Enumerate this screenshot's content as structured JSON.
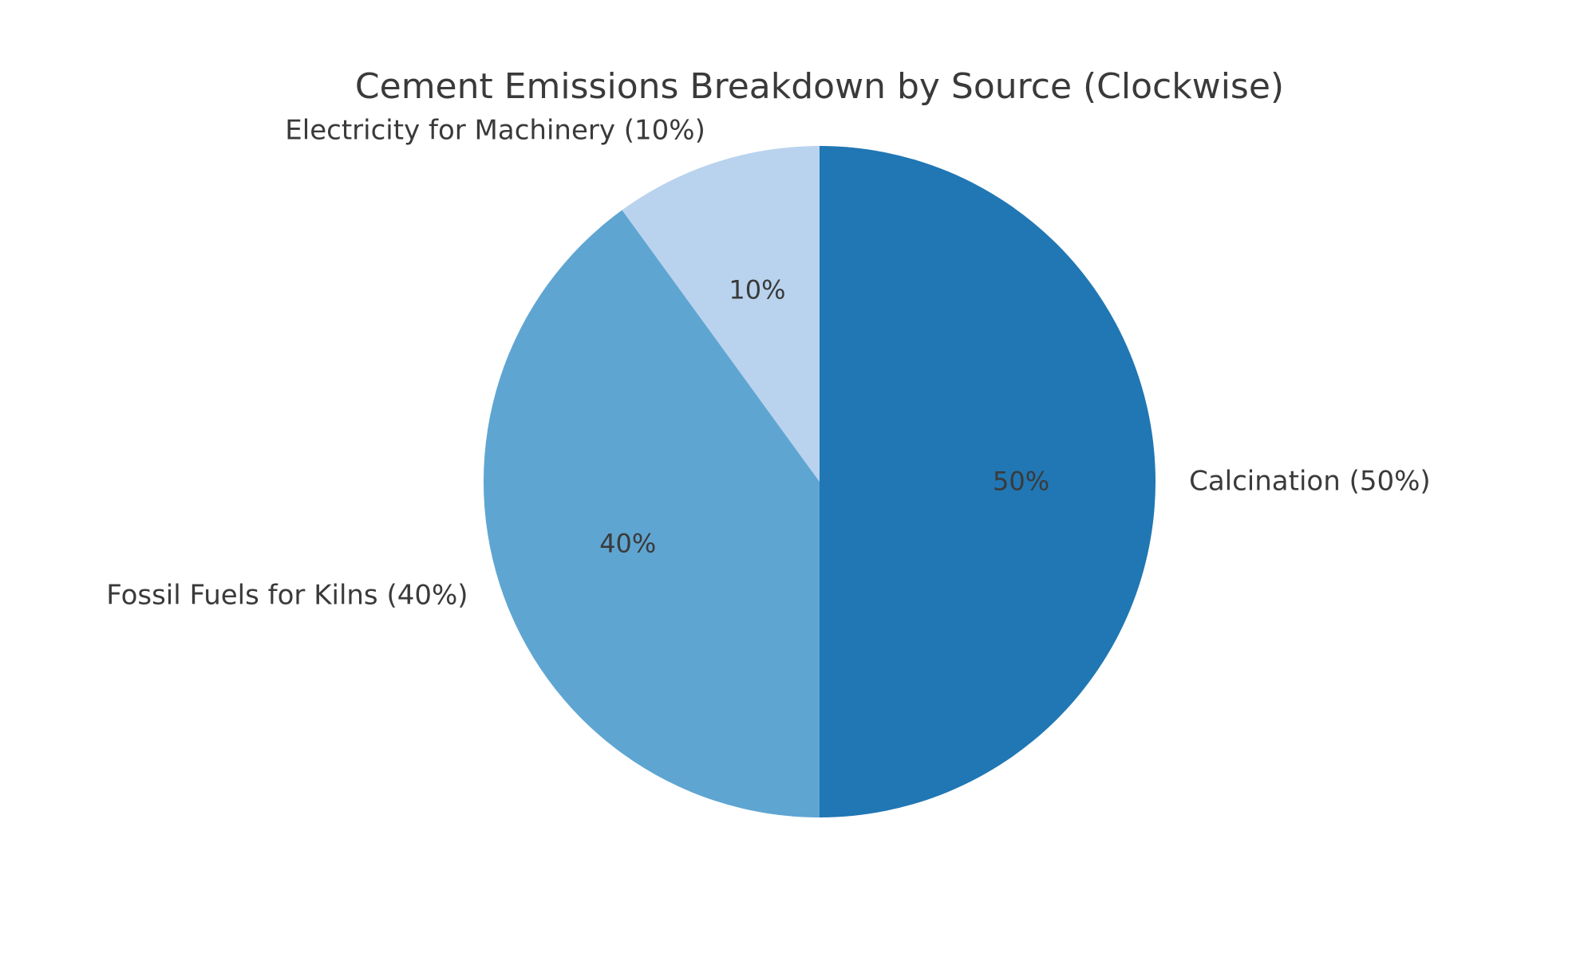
{
  "chart_data": {
    "type": "pie",
    "title": "Cement Emissions Breakdown by Source (Clockwise)",
    "direction": "clockwise",
    "start_angle": "top",
    "legend": "none",
    "background_color": "#ffffff",
    "text_color": "#3a3a3a",
    "categories": [
      "Calcination",
      "Fossil Fuels for Kilns",
      "Electricity for Machinery"
    ],
    "values": [
      50,
      40,
      10
    ],
    "unit": "%",
    "slices": [
      {
        "name": "Calcination",
        "value": 50,
        "outer_label": "Calcination (50%)",
        "pct_label": "50%",
        "color": "#2077b4"
      },
      {
        "name": "Fossil Fuels for Kilns",
        "value": 40,
        "outer_label": "Fossil Fuels for Kilns (40%)",
        "pct_label": "40%",
        "color": "#5fa5d2"
      },
      {
        "name": "Electricity for Machinery",
        "value": 10,
        "outer_label": "Electricity for Machinery (10%)",
        "pct_label": "10%",
        "color": "#b9d3ee"
      }
    ]
  }
}
